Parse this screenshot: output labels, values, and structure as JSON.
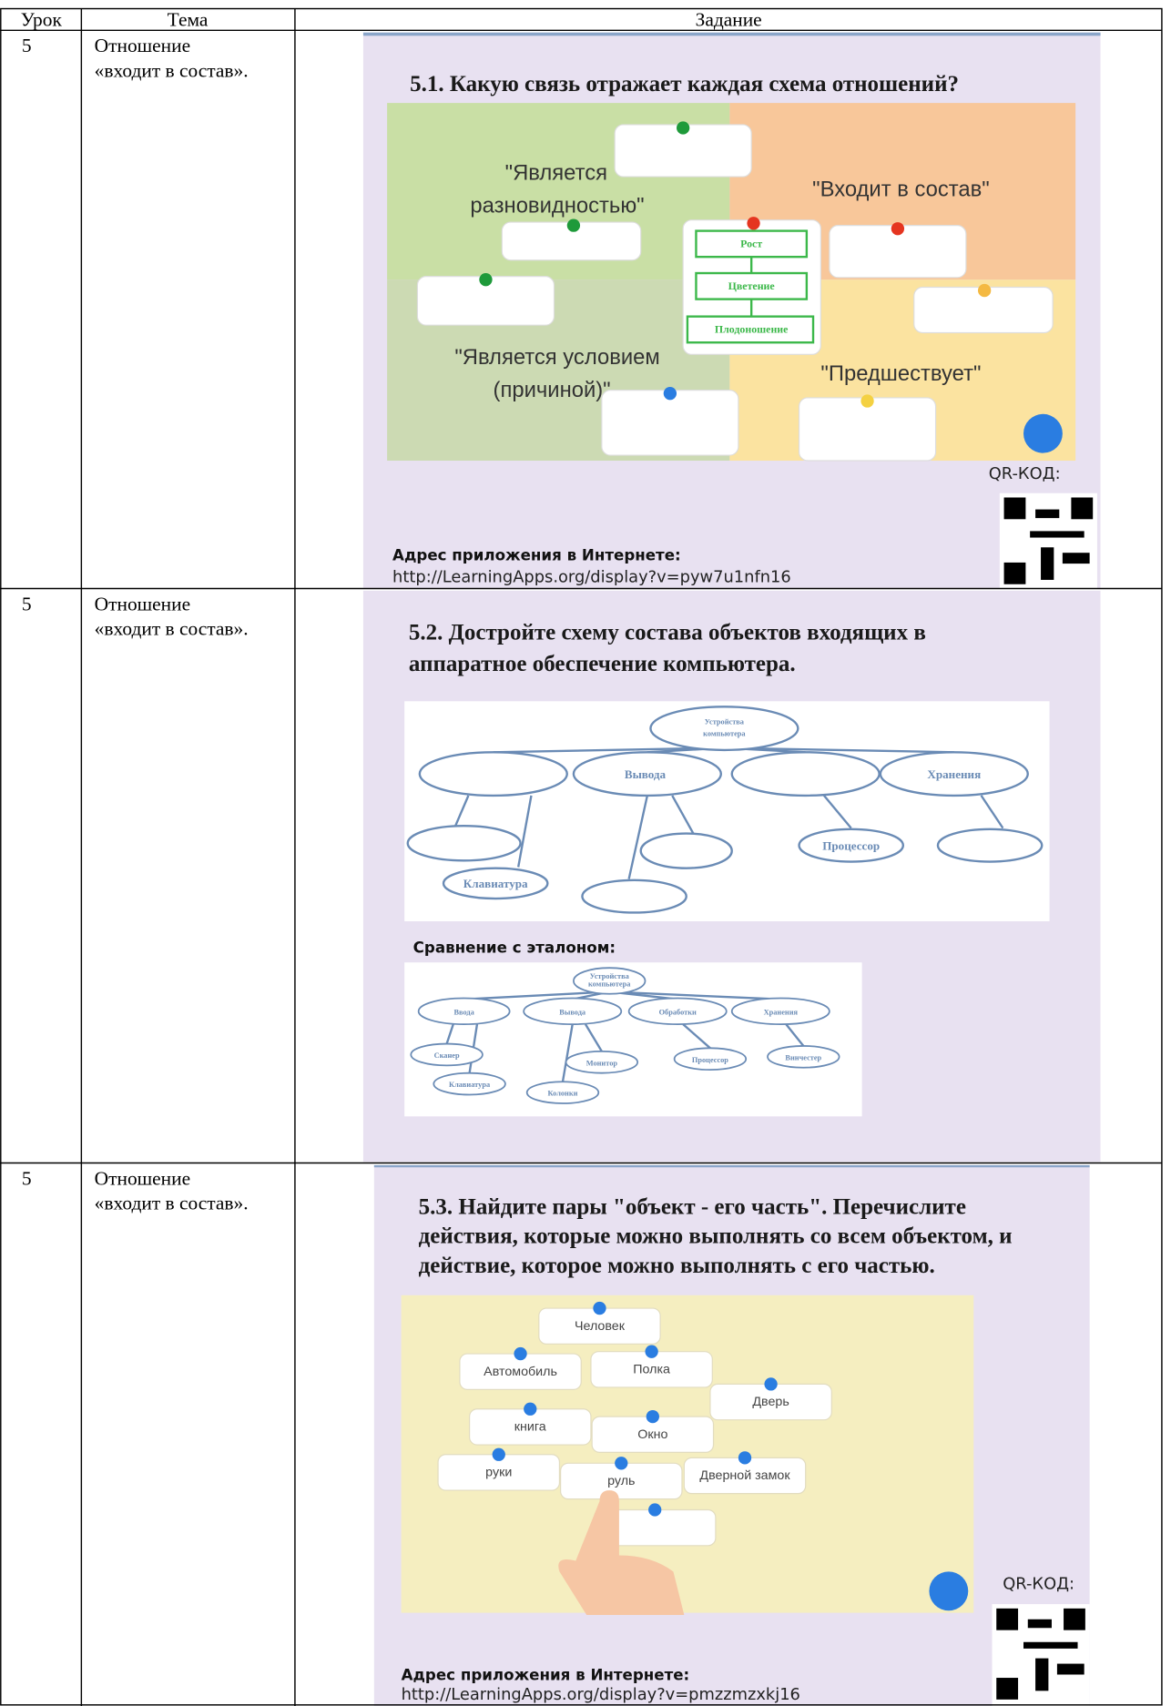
{
  "header": {
    "columns": [
      "Урок",
      "Тема",
      "Задание"
    ]
  },
  "rows": [
    {
      "lesson": "5",
      "topic": [
        "Отношение",
        "«входит в состав»."
      ],
      "task": {
        "title": "5.1. Какую связь отражает каждая схема отношений?",
        "labels": [
          [
            "\"Является",
            "разновидностью\""
          ],
          [
            "\"Входит в состав\""
          ],
          [
            "\"Является условием",
            "(причиной)\""
          ],
          [
            "\"Предшествует\""
          ]
        ],
        "steps": [
          "Рост",
          "Цветение",
          "Плодоношение"
        ],
        "qr_label": "QR-КОД:",
        "address_label": "Адрес приложения в Интернете:",
        "url": "http://LearningApps.org/display?v=pyw7u1nfn16"
      }
    },
    {
      "lesson": "5",
      "topic": [
        "Отношение",
        "«входит в состав»."
      ],
      "task": {
        "title": [
          "5.2. Достройте схему состава объектов входящих в",
          "аппаратное обеспечение компьютера."
        ],
        "diagram": {
          "root": [
            "Устройства",
            "компьютера"
          ],
          "nodes": [
            "Вывода",
            "Хранения",
            "Процессор",
            "Клавиатура"
          ]
        },
        "compare_label": "Сравнение с эталоном:",
        "reference": {
          "root": [
            "Устройства",
            "компьютера"
          ],
          "groups": [
            "Ввода",
            "Вывода",
            "Обработки",
            "Хранения"
          ],
          "items": [
            "Сканер",
            "Клавиатура",
            "Монитор",
            "Колонки",
            "Процессор",
            "Винчестер"
          ]
        }
      }
    },
    {
      "lesson": "5",
      "topic": [
        "Отношение",
        "«входит в состав»."
      ],
      "task": {
        "title": [
          "5.3. Найдите пары \"объект - его часть\". Перечислите",
          "действия, которые можно выполнять со всем объектом, и",
          "действие, которое можно выполнять с его частью."
        ],
        "cards": [
          "Человек",
          "Автомобиль",
          "Полка",
          "Дверь",
          "книга",
          "Окно",
          "руки",
          "руль",
          "Дверной замок"
        ],
        "qr_label": "QR-КОД:",
        "address_label": "Адрес приложения в Интернете:",
        "url": "http://LearningApps.org/display?v=pmzzmzxkj16"
      }
    }
  ]
}
